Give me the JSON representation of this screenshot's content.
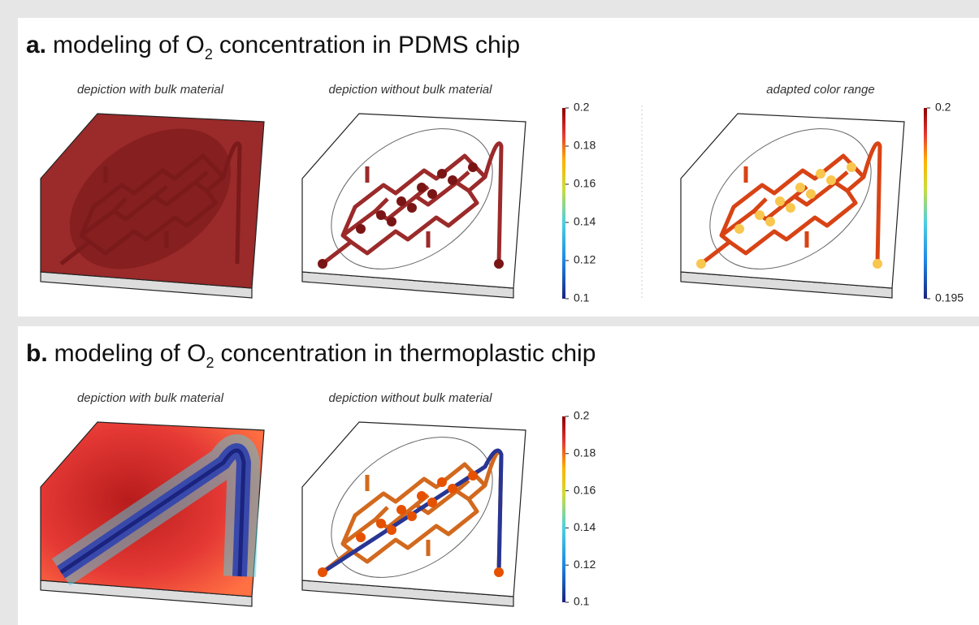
{
  "panels": [
    {
      "title": {
        "label": "a.",
        "pre": "modeling of O",
        "sub": "2",
        "post": "concentration in PDMS chip"
      },
      "subtitles": [
        "depiction with bulk material",
        "depiction without bulk material",
        "adapted color range"
      ],
      "colorbars": [
        {
          "range": [
            0.1,
            0.2
          ],
          "ticks": [
            0.2,
            0.18,
            0.16,
            0.14,
            0.12,
            0.1
          ]
        },
        {
          "range": [
            0.195,
            0.2
          ],
          "ticks": [
            0.2,
            0.195
          ]
        }
      ]
    },
    {
      "title": {
        "label": "b.",
        "pre": "modeling of O",
        "sub": "2",
        "post": "concentration in thermoplastic chip"
      },
      "subtitles": [
        "depiction with bulk material",
        "depiction without bulk material"
      ],
      "colorbars": [
        {
          "range": [
            0.1,
            0.2
          ],
          "ticks": [
            0.2,
            0.18,
            0.16,
            0.14,
            0.12,
            0.1
          ]
        }
      ]
    }
  ]
}
